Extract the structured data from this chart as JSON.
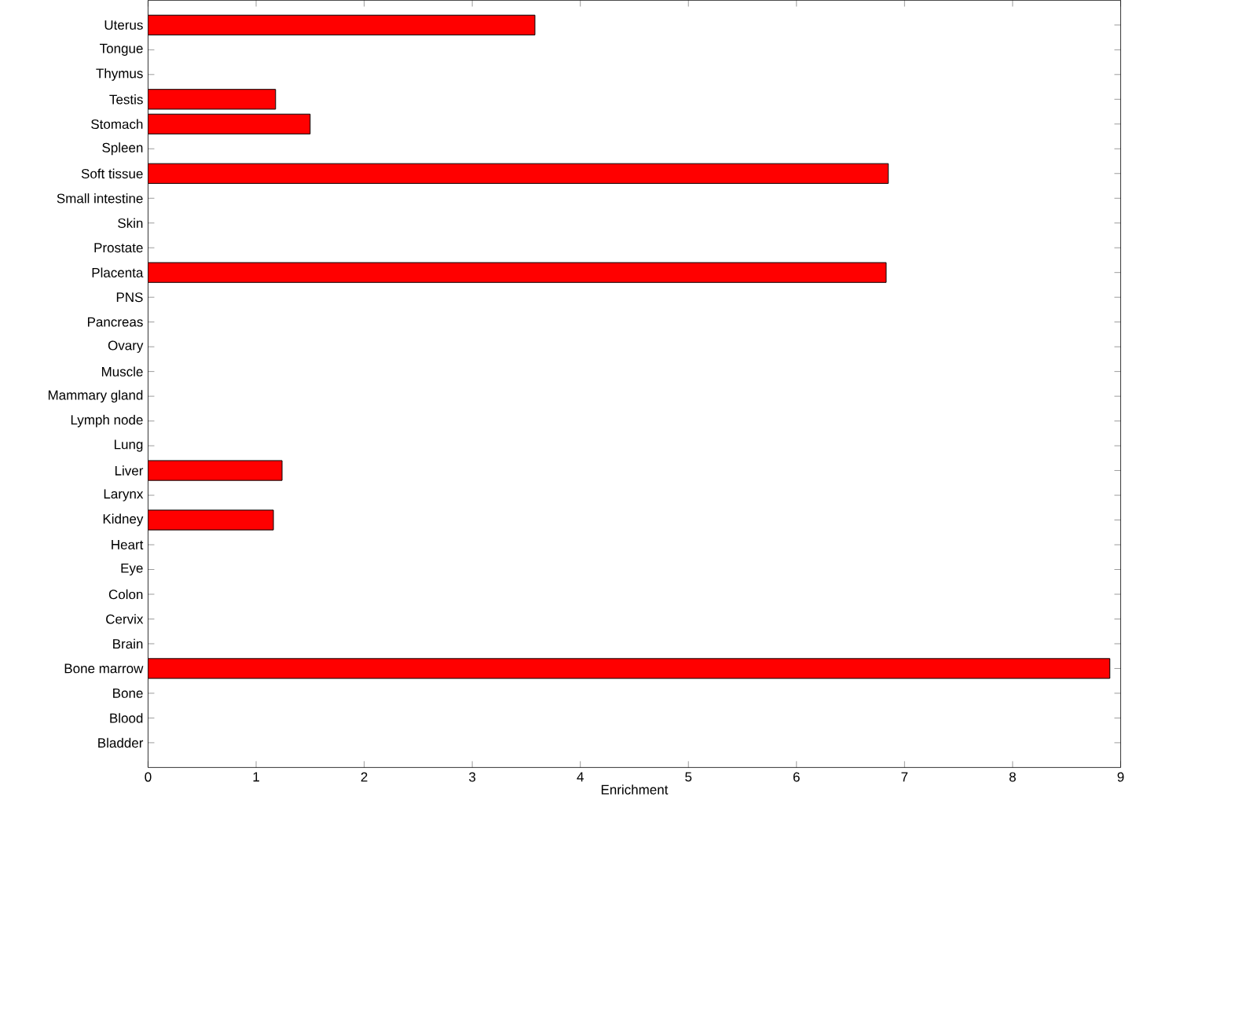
{
  "chart_data": {
    "type": "bar",
    "orientation": "horizontal",
    "xlabel": "Enrichment",
    "categories": [
      "Uterus",
      "Tongue",
      "Thymus",
      "Testis",
      "Stomach",
      "Spleen",
      "Soft tissue",
      "Small intestine",
      "Skin",
      "Prostate",
      "Placenta",
      "PNS",
      "Pancreas",
      "Ovary",
      "Muscle",
      "Mammary gland",
      "Lymph node",
      "Lung",
      "Liver",
      "Larynx",
      "Kidney",
      "Heart",
      "Eye",
      "Colon",
      "Cervix",
      "Brain",
      "Bone marrow",
      "Bone",
      "Blood",
      "Bladder"
    ],
    "values": [
      3.58,
      0,
      0,
      1.18,
      1.5,
      0,
      6.85,
      0,
      0,
      0,
      6.83,
      0,
      0,
      0,
      0,
      0,
      0,
      0,
      1.24,
      0,
      1.16,
      0,
      0,
      0,
      0,
      0,
      8.9,
      0,
      0,
      0
    ],
    "color": "#ff0000",
    "xlim": [
      0,
      9
    ],
    "xticks": [
      0,
      1,
      2,
      3,
      4,
      5,
      6,
      7,
      8,
      9
    ]
  }
}
